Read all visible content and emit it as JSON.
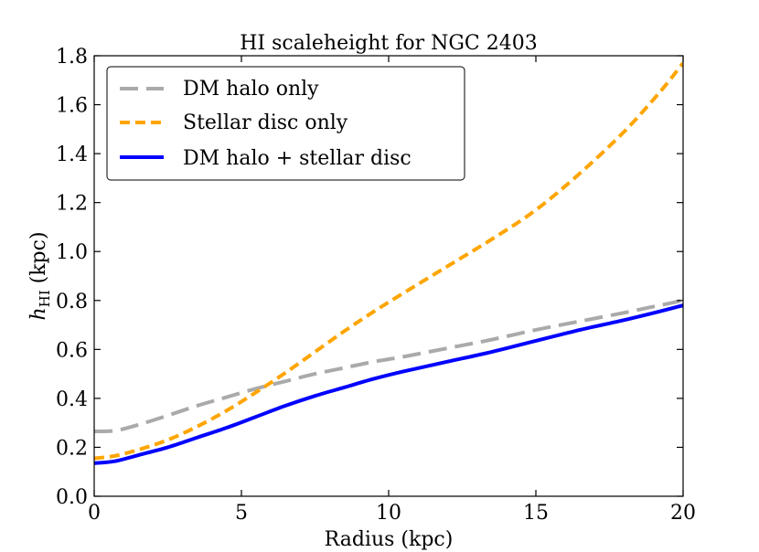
{
  "chart_data": {
    "type": "line",
    "title": "HI scaleheight for NGC 2403",
    "xlabel": "Radius (kpc)",
    "ylabel_main": "h",
    "ylabel_sub": "HI",
    "ylabel_units": " (kpc)",
    "xlim": [
      0,
      20
    ],
    "ylim": [
      0.0,
      1.8
    ],
    "xticks": [
      0,
      5,
      10,
      15,
      20
    ],
    "xtick_labels": [
      "0",
      "5",
      "10",
      "15",
      "20"
    ],
    "yticks": [
      0.0,
      0.2,
      0.4,
      0.6,
      0.8,
      1.0,
      1.2,
      1.4,
      1.6,
      1.8
    ],
    "ytick_labels": [
      "0.0",
      "0.2",
      "0.4",
      "0.6",
      "0.8",
      "1.0",
      "1.2",
      "1.4",
      "1.6",
      "1.8"
    ],
    "grid": false,
    "legend_position": "top-left",
    "series": [
      {
        "name": "DM halo only",
        "color": "#aaaaaa",
        "style": "dashed-long",
        "x": [
          0,
          0.7,
          1.5,
          2.5,
          3.5,
          4.5,
          5.5,
          6.5,
          7.5,
          8.5,
          9.5,
          10.5,
          12,
          13.5,
          15,
          16.5,
          18,
          19.2,
          20
        ],
        "y": [
          0.265,
          0.268,
          0.292,
          0.33,
          0.37,
          0.405,
          0.44,
          0.47,
          0.5,
          0.525,
          0.55,
          0.57,
          0.605,
          0.64,
          0.68,
          0.715,
          0.75,
          0.78,
          0.8
        ]
      },
      {
        "name": "Stellar disc only",
        "color": "#ffa500",
        "style": "dashed-short",
        "x": [
          0,
          0.7,
          1.5,
          2.5,
          3.5,
          4.5,
          5.5,
          6.5,
          7.5,
          8.5,
          9.5,
          10.5,
          12,
          13.5,
          15,
          16.5,
          18,
          19.2,
          20
        ],
        "y": [
          0.155,
          0.165,
          0.19,
          0.23,
          0.285,
          0.35,
          0.425,
          0.505,
          0.59,
          0.675,
          0.755,
          0.83,
          0.94,
          1.05,
          1.17,
          1.32,
          1.49,
          1.65,
          1.77
        ]
      },
      {
        "name": "DM halo + stellar disc",
        "color": "#0000ff",
        "style": "solid",
        "x": [
          0,
          0.7,
          1.5,
          2.5,
          3.5,
          4.5,
          5.5,
          6.5,
          7.5,
          8.5,
          9.5,
          10.5,
          12,
          13.5,
          15,
          16.5,
          18,
          19.2,
          20
        ],
        "y": [
          0.135,
          0.143,
          0.168,
          0.2,
          0.24,
          0.28,
          0.325,
          0.37,
          0.41,
          0.445,
          0.48,
          0.51,
          0.55,
          0.59,
          0.635,
          0.68,
          0.72,
          0.755,
          0.78
        ]
      }
    ]
  }
}
